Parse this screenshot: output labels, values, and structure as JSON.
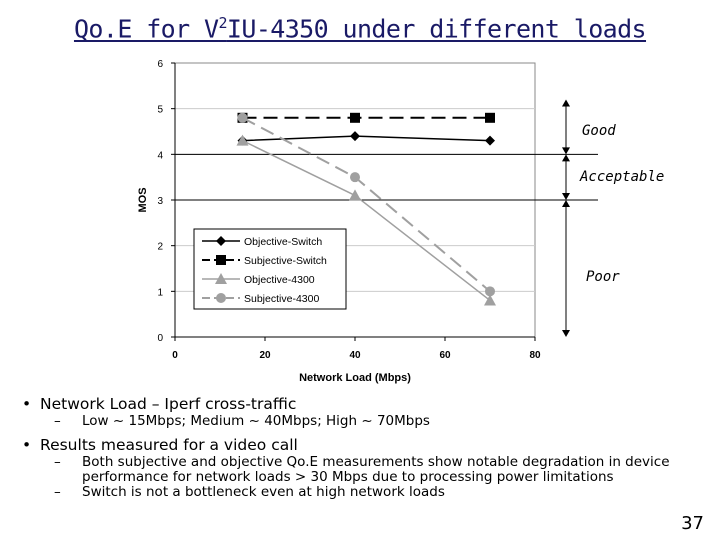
{
  "slide": {
    "title_pre": "Qo.E for V",
    "title_sup": "2",
    "title_post": "IU-4350 under different loads",
    "page_number": "37"
  },
  "bullets": [
    {
      "text": "Network Load – Iperf cross-traffic",
      "subs": [
        "Low ~ 15Mbps; Medium ~ 40Mbps; High ~ 70Mbps"
      ]
    },
    {
      "text": "Results measured for a video call",
      "subs": [
        "Both subjective and objective Qo.E measurements show notable degradation in device performance for network loads > 30 Mbps due to processing power limitations",
        "Switch is not a bottleneck even at high network loads"
      ]
    }
  ],
  "chart_data": {
    "type": "line",
    "xlabel": "Network Load (Mbps)",
    "ylabel": "MOS",
    "xlim": [
      0,
      80
    ],
    "ylim": [
      0,
      6
    ],
    "x_ticks": [
      0,
      20,
      40,
      60,
      80
    ],
    "y_ticks": [
      0,
      1,
      2,
      3,
      4,
      5,
      6
    ],
    "grid": "horizontal",
    "legend_position": "bottom-left",
    "series": [
      {
        "name": "Objective-Switch",
        "x": [
          15,
          40,
          70
        ],
        "values": [
          4.3,
          4.4,
          4.3
        ],
        "color": "#000000",
        "dash": "solid",
        "marker": "diamond"
      },
      {
        "name": "Subjective-Switch",
        "x": [
          15,
          40,
          70
        ],
        "values": [
          4.8,
          4.8,
          4.8
        ],
        "color": "#000000",
        "dash": "dashed",
        "marker": "square"
      },
      {
        "name": "Objective-4300",
        "x": [
          15,
          40,
          70
        ],
        "values": [
          4.3,
          3.1,
          0.8
        ],
        "color": "#a0a0a0",
        "dash": "solid",
        "marker": "triangle"
      },
      {
        "name": "Subjective-4300",
        "x": [
          15,
          40,
          70
        ],
        "values": [
          4.8,
          3.5,
          1.0
        ],
        "color": "#a0a0a0",
        "dash": "dashed",
        "marker": "circle"
      }
    ],
    "annotations": [
      {
        "label": "Good",
        "y_range": [
          4,
          5.2
        ]
      },
      {
        "label": "Acceptable",
        "y_range": [
          3,
          4
        ]
      },
      {
        "label": "Poor",
        "y_range": [
          0,
          3
        ]
      }
    ],
    "annotation_lines": [
      4,
      3
    ]
  }
}
